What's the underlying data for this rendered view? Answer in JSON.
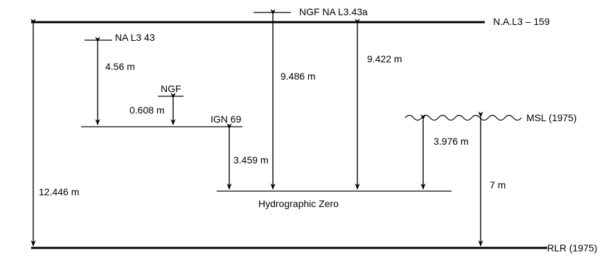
{
  "levels": {
    "nal3": "N.A.L3 – 159",
    "ngf_nal343a": "NGF NA L3.43a",
    "nal343": "NA L3 43",
    "ngf": "NGF",
    "ign69": "IGN 69",
    "msl": "MSL (1975)",
    "hydro_zero": "Hydrographic Zero",
    "rlr": "RLR (1975)"
  },
  "distances": {
    "d_12446": "12.446 m",
    "d_456": "4.56 m",
    "d_0608": "0.608 m",
    "d_3459": "3.459 m",
    "d_9486": "9.486 m",
    "d_9422": "9.422 m",
    "d_3976": "3.976 m",
    "d_7": "7 m"
  }
}
